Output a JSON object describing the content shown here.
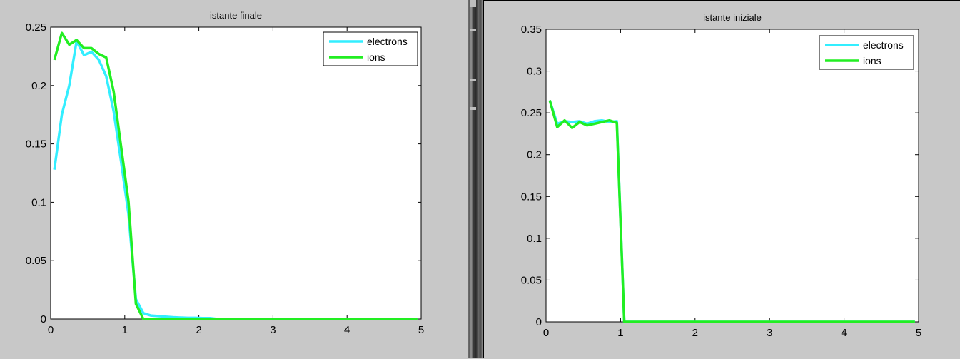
{
  "chart_data": [
    {
      "type": "line",
      "title": "istante finale",
      "xlabel": "",
      "ylabel": "",
      "xlim": [
        0,
        5
      ],
      "ylim": [
        0,
        0.25
      ],
      "xticks": [
        "0",
        "1",
        "2",
        "3",
        "4",
        "5"
      ],
      "yticks": [
        "0",
        "0.05",
        "0.1",
        "0.15",
        "0.2",
        "0.25"
      ],
      "grid": false,
      "legend_position": "top-right",
      "series": [
        {
          "name": "electrons",
          "color": "#33eeff",
          "x": [
            0.05,
            0.15,
            0.25,
            0.35,
            0.45,
            0.55,
            0.65,
            0.75,
            0.85,
            0.95,
            1.05,
            1.15,
            1.25,
            1.35,
            1.45,
            1.55,
            1.65,
            1.75,
            1.85,
            1.95,
            2.05,
            2.15,
            2.25,
            2.5,
            3.0,
            3.5,
            4.0,
            4.5,
            4.95
          ],
          "y": [
            0.128,
            0.175,
            0.2,
            0.238,
            0.226,
            0.229,
            0.222,
            0.208,
            0.178,
            0.135,
            0.09,
            0.017,
            0.005,
            0.003,
            0.0025,
            0.002,
            0.0015,
            0.0012,
            0.001,
            0.001,
            0.0008,
            0.0008,
            0.0,
            0.0,
            0.0,
            0.0,
            0.0,
            0.0,
            0.0
          ]
        },
        {
          "name": "ions",
          "color": "#22ee22",
          "x": [
            0.05,
            0.15,
            0.25,
            0.35,
            0.45,
            0.55,
            0.65,
            0.75,
            0.85,
            0.95,
            1.05,
            1.15,
            1.25,
            1.35,
            1.5,
            2.0,
            2.5,
            3.0,
            3.5,
            4.0,
            4.5,
            4.95
          ],
          "y": [
            0.222,
            0.245,
            0.235,
            0.239,
            0.232,
            0.232,
            0.227,
            0.224,
            0.195,
            0.148,
            0.101,
            0.013,
            0.0,
            0.0,
            0.0,
            0.0,
            0.0,
            0.0,
            0.0,
            0.0,
            0.0,
            0.0
          ]
        }
      ]
    },
    {
      "type": "line",
      "title": "istante iniziale",
      "xlabel": "",
      "ylabel": "",
      "xlim": [
        0,
        5
      ],
      "ylim": [
        0,
        0.35
      ],
      "xticks": [
        "0",
        "1",
        "2",
        "3",
        "4",
        "5"
      ],
      "yticks": [
        "0",
        "0.05",
        "0.1",
        "0.15",
        "0.2",
        "0.25",
        "0.3",
        "0.35"
      ],
      "grid": false,
      "legend_position": "top-right",
      "series": [
        {
          "name": "electrons",
          "color": "#33eeff",
          "x": [
            0.05,
            0.15,
            0.25,
            0.35,
            0.45,
            0.55,
            0.65,
            0.75,
            0.85,
            0.95,
            1.05,
            1.15,
            1.5,
            2.0,
            2.5,
            3.0,
            3.5,
            4.0,
            4.5,
            4.95
          ],
          "y": [
            0.265,
            0.237,
            0.24,
            0.239,
            0.24,
            0.237,
            0.24,
            0.241,
            0.239,
            0.24,
            0.0,
            0.0,
            0.0,
            0.0,
            0.0,
            0.0,
            0.0,
            0.0,
            0.0,
            0.0
          ]
        },
        {
          "name": "ions",
          "color": "#22ee22",
          "x": [
            0.05,
            0.15,
            0.25,
            0.35,
            0.45,
            0.55,
            0.65,
            0.75,
            0.85,
            0.95,
            1.05,
            1.15,
            1.5,
            2.0,
            2.5,
            3.0,
            3.5,
            4.0,
            4.5,
            4.95
          ],
          "y": [
            0.265,
            0.233,
            0.241,
            0.232,
            0.239,
            0.235,
            0.237,
            0.239,
            0.241,
            0.238,
            0.0,
            0.0,
            0.0,
            0.0,
            0.0,
            0.0,
            0.0,
            0.0,
            0.0,
            0.0
          ]
        }
      ]
    }
  ]
}
